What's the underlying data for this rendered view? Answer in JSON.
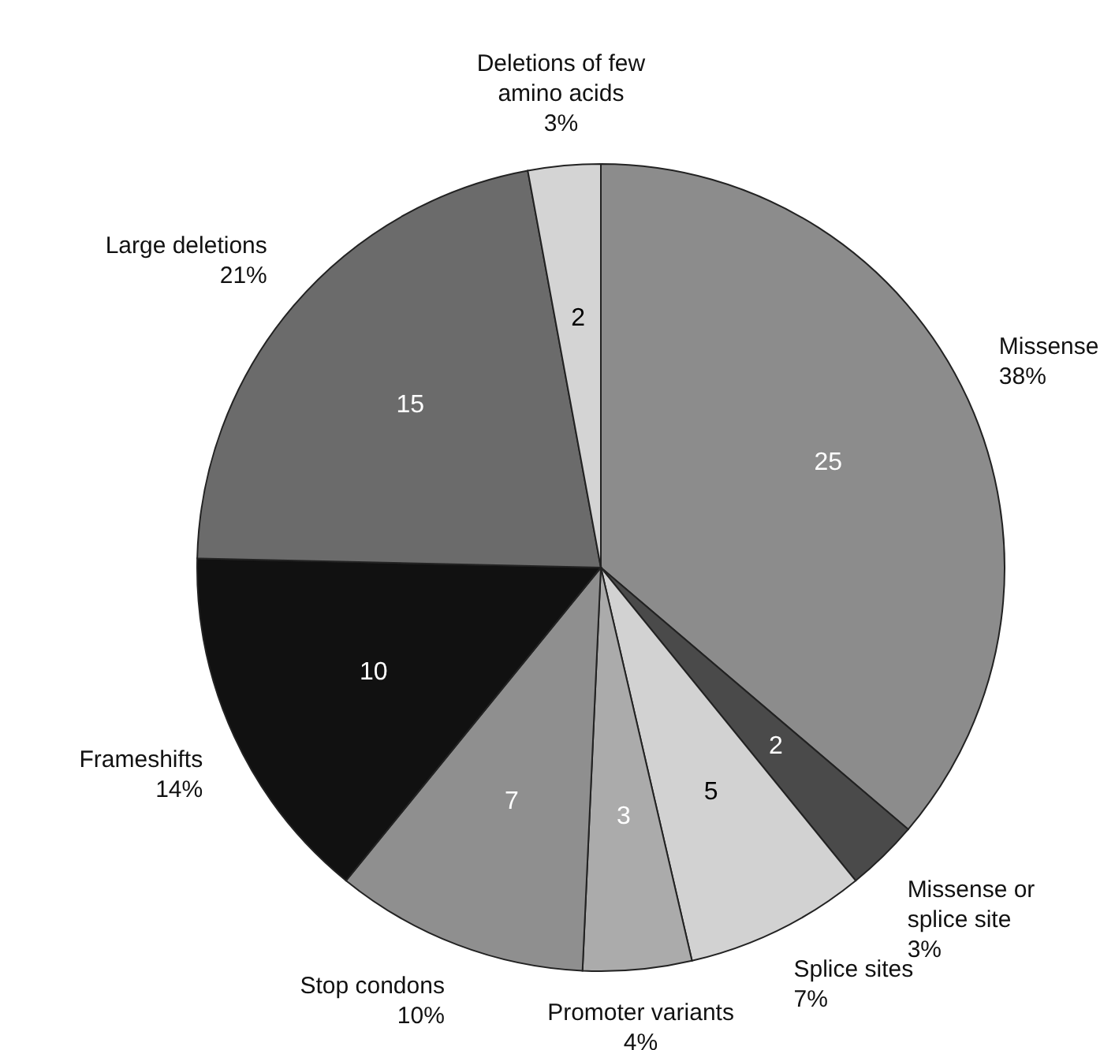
{
  "chart_data": {
    "type": "pie",
    "categories": [
      "Missense",
      "Missense or splice site",
      "Splice sites",
      "Promoter variants",
      "Stop condons",
      "Frameshifts",
      "Large deletions",
      "Deletions of few amino acids"
    ],
    "values": [
      25,
      2,
      5,
      3,
      7,
      10,
      15,
      2
    ],
    "colors": [
      "#8c8c8c",
      "#4a4a4a",
      "#d2d2d2",
      "#ababab",
      "#8f8f8f",
      "#111111",
      "#6b6b6b",
      "#d4d4d4"
    ],
    "annotations": [
      "38%",
      "3%",
      "7%",
      "4%",
      "10%",
      "14%",
      "21%",
      "3%"
    ],
    "data_labels": true
  }
}
